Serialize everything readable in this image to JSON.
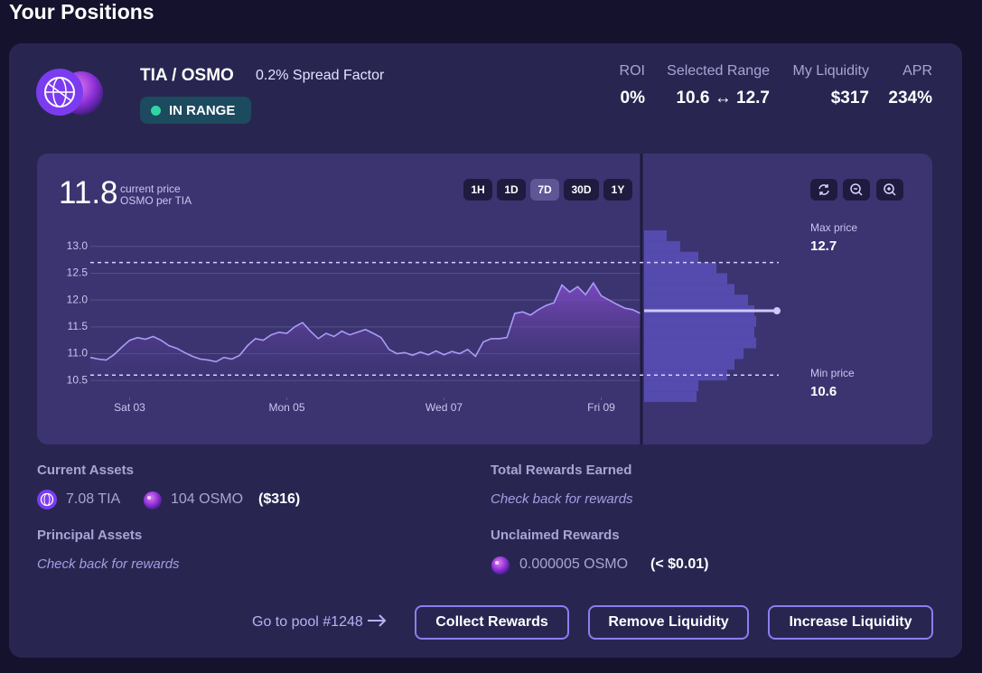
{
  "page_title": "Your Positions",
  "position": {
    "pair": "TIA / OSMO",
    "spread_factor": "0.2% Spread Factor",
    "status": "IN RANGE",
    "stats": [
      {
        "label": "ROI",
        "value": "0%"
      },
      {
        "label": "Selected Range",
        "separator": "↔"
      },
      {
        "label": "My Liquidity",
        "value": "$317"
      },
      {
        "label": "APR",
        "value": "234%"
      }
    ],
    "chart": {
      "type": "line",
      "current_price": 11.8,
      "current_price_label": "current price",
      "unit_label": "OSMO per TIA",
      "timeframes": [
        "1H",
        "1D",
        "7D",
        "30D",
        "1Y"
      ],
      "active_timeframe": 2,
      "color": "#a99cf5",
      "x": [
        2.5,
        2.6,
        2.7,
        2.8,
        2.9,
        3.0,
        3.1,
        3.2,
        3.3,
        3.4,
        3.5,
        3.6,
        3.7,
        3.8,
        3.9,
        4.0,
        4.1,
        4.2,
        4.3,
        4.4,
        4.5,
        4.6,
        4.7,
        4.8,
        4.9,
        5.0,
        5.1,
        5.2,
        5.3,
        5.4,
        5.5,
        5.6,
        5.7,
        5.8,
        5.9,
        6.0,
        6.1,
        6.2,
        6.3,
        6.4,
        6.5,
        6.6,
        6.7,
        6.8,
        6.9,
        7.0,
        7.1,
        7.2,
        7.3,
        7.4,
        7.5,
        7.6,
        7.7,
        7.8,
        7.9,
        8.0,
        8.1,
        8.2,
        8.3,
        8.4,
        8.5,
        8.6,
        8.7,
        8.8,
        8.9,
        9.0,
        9.1,
        9.2,
        9.3,
        9.4,
        9.5
      ],
      "values": [
        10.93,
        10.9,
        10.88,
        10.98,
        11.12,
        11.25,
        11.3,
        11.27,
        11.32,
        11.25,
        11.15,
        11.1,
        11.02,
        10.95,
        10.9,
        10.88,
        10.85,
        10.93,
        10.9,
        10.97,
        11.15,
        11.28,
        11.25,
        11.35,
        11.4,
        11.38,
        11.5,
        11.58,
        11.42,
        11.28,
        11.38,
        11.32,
        11.42,
        11.35,
        11.4,
        11.45,
        11.38,
        11.3,
        11.08,
        11.0,
        11.02,
        10.97,
        11.03,
        10.98,
        11.05,
        10.98,
        11.04,
        11.0,
        11.08,
        10.95,
        11.22,
        11.28,
        11.28,
        11.3,
        11.75,
        11.78,
        11.72,
        11.82,
        11.9,
        11.95,
        12.28,
        12.15,
        12.25,
        12.1,
        12.32,
        12.08,
        12.0,
        11.92,
        11.85,
        11.82,
        11.75
      ],
      "xlim": [
        2.5,
        9.5
      ],
      "xticks": [
        {
          "value": 3,
          "label": "Sat 03"
        },
        {
          "value": 5,
          "label": "Mon 05"
        },
        {
          "value": 7,
          "label": "Wed 07"
        },
        {
          "value": 9,
          "label": "Fri 09"
        }
      ],
      "ylim": [
        10.2,
        13.3
      ],
      "yticks": [
        {
          "value": 13,
          "label": "13.0"
        },
        12.5,
        {
          "value": 12,
          "label": "12.0"
        },
        11.5,
        {
          "value": 11,
          "label": "11.0"
        },
        10.5
      ],
      "grid": true,
      "max_price_label": "Max price",
      "max_price": 12.7,
      "min_price_label": "Min price",
      "min_price": 10.6,
      "liquidity": {
        "color": "#554bae",
        "bins": [
          10.1,
          10.3,
          10.5,
          10.7,
          10.9,
          11.1,
          11.3,
          11.5,
          11.7,
          11.9,
          12.1,
          12.3,
          12.5,
          12.7,
          12.9,
          13.1,
          13.3
        ],
        "depths": [
          58,
          60,
          92,
          100,
          110,
          124,
          122,
          124,
          122,
          115,
          100,
          92,
          80,
          60,
          40,
          25
        ],
        "xlim": [
          0,
          150
        ]
      }
    },
    "current_assets": {
      "title": "Current Assets",
      "items": [
        "7.08 TIA",
        "104 OSMO"
      ],
      "total": "($316)"
    },
    "principal_assets": {
      "title": "Principal Assets",
      "note": "Check back for rewards"
    },
    "total_rewards": {
      "title": "Total Rewards Earned",
      "note": "Check back for rewards"
    },
    "unclaimed_rewards": {
      "title": "Unclaimed Rewards",
      "items": [
        "0.000005 OSMO"
      ],
      "total": "(< $0.01)"
    },
    "footer": {
      "pool_link": "Go to pool #1248",
      "buttons": [
        "Collect Rewards",
        "Remove Liquidity",
        "Increase Liquidity"
      ]
    }
  }
}
